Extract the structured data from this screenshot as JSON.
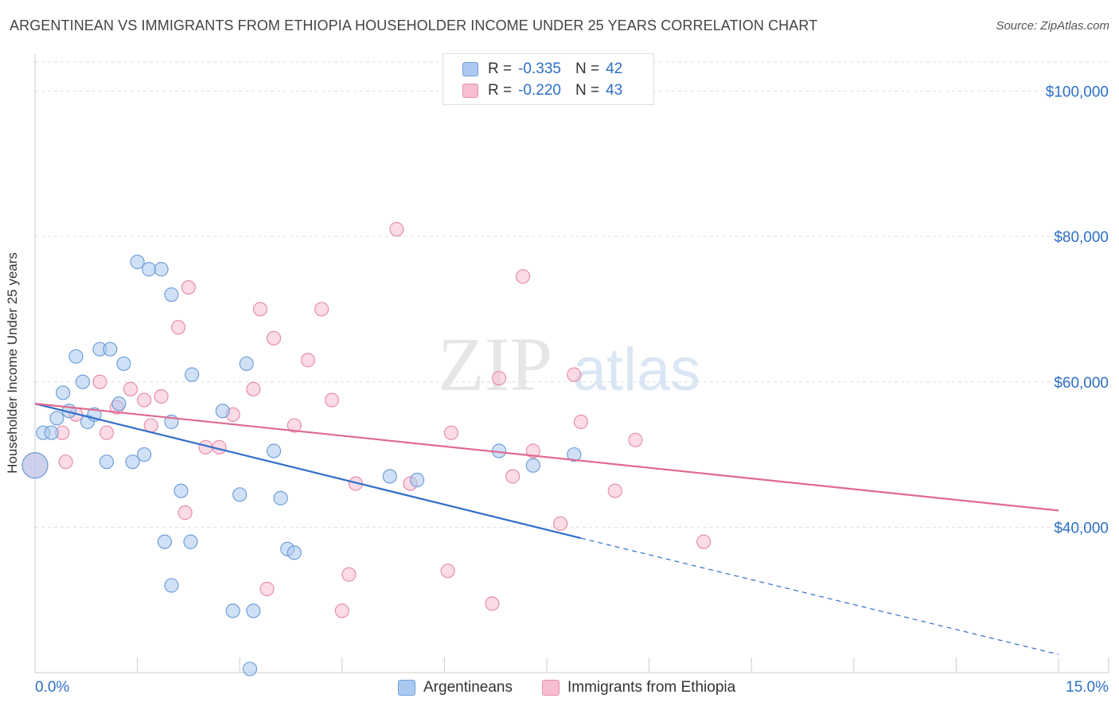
{
  "title": "ARGENTINEAN VS IMMIGRANTS FROM ETHIOPIA HOUSEHOLDER INCOME UNDER 25 YEARS CORRELATION CHART",
  "source": "Source: ZipAtlas.com",
  "watermark": {
    "zip": "ZIP",
    "atlas": "atlas"
  },
  "legend": {
    "r_label": "R =",
    "n_label": "N =",
    "series1": {
      "r": "-0.335",
      "n": "42"
    },
    "series2": {
      "r": "-0.220",
      "n": "43"
    }
  },
  "bottom_legend": {
    "series1": "Argentineans",
    "series2": "Immigrants from Ethiopia"
  },
  "colors": {
    "series1_fill": "#aac8f0",
    "series1_stroke": "#6f9fd8",
    "series1_line": "#2f6fcb",
    "series2_fill": "#f7bdd0",
    "series2_stroke": "#e68fab",
    "series2_line": "#e06890",
    "axis_text": "#2d6fc5",
    "grid": "#dddddd"
  },
  "chart_data": {
    "type": "scatter",
    "title": "ARGENTINEAN VS IMMIGRANTS FROM ETHIOPIA HOUSEHOLDER INCOME UNDER 25 YEARS CORRELATION CHART",
    "xlabel": "",
    "ylabel": "Householder Income Under 25 years",
    "xlim": [
      0,
      15
    ],
    "ylim": [
      20000,
      104000
    ],
    "x_tick_labels": [
      "0.0%",
      "15.0%"
    ],
    "y_ticks": [
      40000,
      60000,
      80000,
      100000
    ],
    "y_tick_labels": [
      "$40,000",
      "$60,000",
      "$80,000",
      "$100,000"
    ],
    "series": [
      {
        "name": "Argentineans",
        "points": [
          [
            0.12,
            53000
          ],
          [
            0.24,
            53000
          ],
          [
            0.32,
            55000
          ],
          [
            0.41,
            58500
          ],
          [
            0.5,
            56000
          ],
          [
            0.6,
            63500
          ],
          [
            0.7,
            60000
          ],
          [
            0.77,
            54500
          ],
          [
            0.87,
            55500
          ],
          [
            0.95,
            64500
          ],
          [
            1.1,
            64500
          ],
          [
            1.23,
            57000
          ],
          [
            1.3,
            62500
          ],
          [
            1.5,
            76500
          ],
          [
            1.67,
            75500
          ],
          [
            1.85,
            75500
          ],
          [
            2.0,
            72000
          ],
          [
            2.3,
            61000
          ],
          [
            2.75,
            56000
          ],
          [
            3.1,
            62500
          ],
          [
            1.05,
            49000
          ],
          [
            1.43,
            49000
          ],
          [
            1.6,
            50000
          ],
          [
            2.14,
            45000
          ],
          [
            2.28,
            38000
          ],
          [
            3.0,
            44500
          ],
          [
            3.5,
            50500
          ],
          [
            3.6,
            44000
          ],
          [
            3.2,
            28500
          ],
          [
            2.9,
            28500
          ],
          [
            1.9,
            38000
          ],
          [
            2.0,
            32000
          ],
          [
            3.7,
            37000
          ],
          [
            3.8,
            36500
          ],
          [
            5.2,
            47000
          ],
          [
            5.6,
            46500
          ],
          [
            6.8,
            50500
          ],
          [
            7.3,
            48500
          ],
          [
            7.9,
            50000
          ],
          [
            3.15,
            20500
          ],
          [
            2.0,
            54500
          ],
          [
            0.0,
            48500
          ]
        ]
      },
      {
        "name": "Immigrants from Ethiopia",
        "points": [
          [
            0.0,
            48500
          ],
          [
            0.45,
            49000
          ],
          [
            0.6,
            55500
          ],
          [
            0.95,
            60000
          ],
          [
            1.05,
            53000
          ],
          [
            1.2,
            56500
          ],
          [
            1.4,
            59000
          ],
          [
            1.6,
            57500
          ],
          [
            1.7,
            54000
          ],
          [
            1.85,
            58000
          ],
          [
            2.1,
            67500
          ],
          [
            2.25,
            73000
          ],
          [
            2.5,
            51000
          ],
          [
            2.7,
            51000
          ],
          [
            2.9,
            55500
          ],
          [
            3.2,
            59000
          ],
          [
            3.3,
            70000
          ],
          [
            3.5,
            66000
          ],
          [
            3.8,
            54000
          ],
          [
            4.0,
            63000
          ],
          [
            4.2,
            70000
          ],
          [
            4.35,
            57500
          ],
          [
            4.5,
            28500
          ],
          [
            4.6,
            33500
          ],
          [
            4.7,
            46000
          ],
          [
            5.3,
            81000
          ],
          [
            5.5,
            46000
          ],
          [
            6.05,
            34000
          ],
          [
            6.1,
            53000
          ],
          [
            6.7,
            29500
          ],
          [
            6.8,
            60500
          ],
          [
            7.0,
            47000
          ],
          [
            7.15,
            74500
          ],
          [
            7.3,
            50500
          ],
          [
            7.7,
            40500
          ],
          [
            7.9,
            61000
          ],
          [
            8.0,
            54500
          ],
          [
            8.5,
            45000
          ],
          [
            8.8,
            52000
          ],
          [
            9.8,
            38000
          ],
          [
            3.4,
            31500
          ],
          [
            2.2,
            42000
          ],
          [
            0.4,
            53000
          ]
        ]
      }
    ],
    "trendlines": [
      {
        "series": "Argentineans",
        "x": [
          0.0,
          8.0
        ],
        "y": [
          57000,
          38500
        ],
        "dashed_extension_to": [
          15.0,
          22500
        ]
      },
      {
        "series": "Immigrants from Ethiopia",
        "x": [
          0.0,
          15.0
        ],
        "y": [
          57000,
          42300
        ]
      }
    ]
  }
}
